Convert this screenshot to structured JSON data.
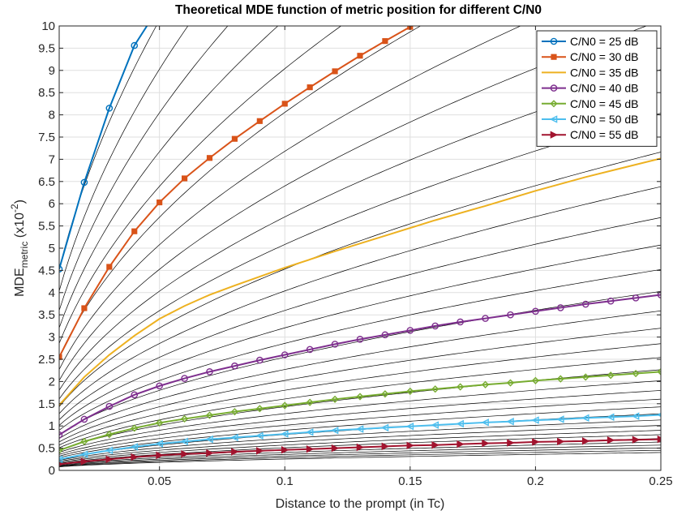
{
  "chart_data": {
    "type": "line",
    "title": "Theoretical MDE function of metric position for different C/N0",
    "xlabel": "Distance to the prompt (in Tc)",
    "ylabel": {
      "main": "MDE",
      "subscript": "metric",
      "unit_prefix": " (x10",
      "unit_exponent": "-2",
      "unit_suffix": ")"
    },
    "xlim": [
      0.01,
      0.25
    ],
    "ylim": [
      0,
      10
    ],
    "xticks": [
      0.05,
      0.1,
      0.15,
      0.2,
      0.25
    ],
    "xtick_labels": [
      "0.05",
      "0.1",
      "0.15",
      "0.2",
      "0.25"
    ],
    "yticks": [
      0,
      0.5,
      1,
      1.5,
      2,
      2.5,
      3,
      3.5,
      4,
      4.5,
      5,
      5.5,
      6,
      6.5,
      7,
      7.5,
      8,
      8.5,
      9,
      9.5,
      10
    ],
    "ytick_labels": [
      "0",
      "0.5",
      "1",
      "1.5",
      "2",
      "2.5",
      "3",
      "3.5",
      "4",
      "4.5",
      "5",
      "5.5",
      "6",
      "6.5",
      "7",
      "7.5",
      "8",
      "8.5",
      "9",
      "9.5",
      "10"
    ],
    "grid": true,
    "legend_position": "top-right",
    "background_curves": {
      "color": "#000000",
      "cn0_start_dB": 25,
      "cn0_step_dB": 1,
      "cn0_end_dB": 60
    },
    "series": [
      {
        "name": "C/N0 = 25 dB",
        "color": "#0072BD",
        "marker": "circle",
        "x": [
          0.01,
          0.02,
          0.03,
          0.04,
          0.045
        ],
        "y": [
          4.53,
          6.48,
          8.15,
          9.56,
          10.0
        ]
      },
      {
        "name": "C/N0 = 30 dB",
        "color": "#D95319",
        "marker": "square",
        "x": [
          0.01,
          0.02,
          0.03,
          0.04,
          0.05,
          0.06,
          0.07,
          0.08,
          0.09,
          0.1,
          0.11,
          0.12,
          0.13,
          0.14,
          0.15
        ],
        "y": [
          2.55,
          3.65,
          4.58,
          5.38,
          6.03,
          6.57,
          7.03,
          7.46,
          7.86,
          8.25,
          8.62,
          8.98,
          9.33,
          9.66,
          9.98
        ]
      },
      {
        "name": "C/N0 = 35 dB",
        "color": "#EDB120",
        "marker": "none",
        "x": [
          0.01,
          0.02,
          0.03,
          0.04,
          0.05,
          0.06,
          0.07,
          0.08,
          0.09,
          0.1,
          0.12,
          0.14,
          0.16,
          0.18,
          0.2,
          0.22,
          0.25
        ],
        "y": [
          1.47,
          2.1,
          2.6,
          3.03,
          3.41,
          3.7,
          3.95,
          4.16,
          4.36,
          4.56,
          4.93,
          5.28,
          5.63,
          5.95,
          6.29,
          6.6,
          7.02
        ]
      },
      {
        "name": "C/N0 = 40 dB",
        "color": "#7E2F8E",
        "marker": "circle",
        "x": [
          0.01,
          0.02,
          0.03,
          0.04,
          0.05,
          0.06,
          0.07,
          0.08,
          0.09,
          0.1,
          0.11,
          0.12,
          0.13,
          0.14,
          0.15,
          0.16,
          0.17,
          0.18,
          0.19,
          0.2,
          0.21,
          0.22,
          0.23,
          0.24,
          0.25
        ],
        "y": [
          0.8,
          1.15,
          1.44,
          1.7,
          1.9,
          2.07,
          2.22,
          2.35,
          2.48,
          2.6,
          2.72,
          2.84,
          2.95,
          3.05,
          3.15,
          3.25,
          3.34,
          3.42,
          3.5,
          3.58,
          3.66,
          3.74,
          3.81,
          3.88,
          3.95
        ]
      },
      {
        "name": "C/N0 = 45 dB",
        "color": "#77AC30",
        "marker": "diamond",
        "x": [
          0.01,
          0.02,
          0.03,
          0.04,
          0.05,
          0.06,
          0.07,
          0.08,
          0.09,
          0.1,
          0.11,
          0.12,
          0.13,
          0.14,
          0.15,
          0.16,
          0.17,
          0.18,
          0.19,
          0.2,
          0.21,
          0.22,
          0.23,
          0.24,
          0.25
        ],
        "y": [
          0.45,
          0.65,
          0.81,
          0.95,
          1.07,
          1.16,
          1.24,
          1.32,
          1.39,
          1.46,
          1.53,
          1.6,
          1.66,
          1.72,
          1.78,
          1.83,
          1.88,
          1.93,
          1.97,
          2.02,
          2.06,
          2.1,
          2.14,
          2.18,
          2.22
        ]
      },
      {
        "name": "C/N0 = 50 dB",
        "color": "#4DBEEE",
        "marker": "triangle-left",
        "x": [
          0.01,
          0.02,
          0.03,
          0.04,
          0.05,
          0.06,
          0.07,
          0.08,
          0.09,
          0.1,
          0.11,
          0.12,
          0.13,
          0.14,
          0.15,
          0.16,
          0.17,
          0.18,
          0.19,
          0.2,
          0.21,
          0.22,
          0.23,
          0.24,
          0.25
        ],
        "y": [
          0.25,
          0.36,
          0.45,
          0.53,
          0.6,
          0.65,
          0.7,
          0.74,
          0.78,
          0.82,
          0.86,
          0.9,
          0.93,
          0.96,
          0.99,
          1.02,
          1.05,
          1.08,
          1.1,
          1.13,
          1.15,
          1.18,
          1.2,
          1.22,
          1.25
        ]
      },
      {
        "name": "C/N0 = 55 dB",
        "color": "#A2142F",
        "marker": "triangle-right",
        "x": [
          0.01,
          0.02,
          0.03,
          0.04,
          0.05,
          0.06,
          0.07,
          0.08,
          0.09,
          0.1,
          0.11,
          0.12,
          0.13,
          0.14,
          0.15,
          0.16,
          0.17,
          0.18,
          0.19,
          0.2,
          0.21,
          0.22,
          0.23,
          0.24,
          0.25
        ],
        "y": [
          0.14,
          0.2,
          0.25,
          0.3,
          0.34,
          0.37,
          0.39,
          0.42,
          0.44,
          0.46,
          0.48,
          0.5,
          0.52,
          0.54,
          0.56,
          0.57,
          0.59,
          0.61,
          0.62,
          0.64,
          0.65,
          0.66,
          0.68,
          0.69,
          0.7
        ]
      }
    ]
  }
}
